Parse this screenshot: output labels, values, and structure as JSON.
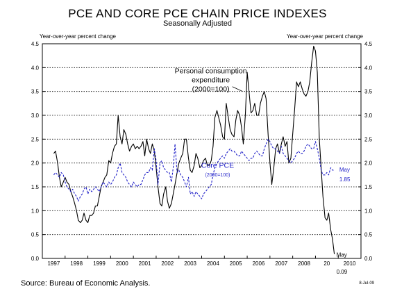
{
  "title": "PCE AND CORE PCE CHAIN PRICE INDEXES",
  "subtitle": "Seasonally Adjusted",
  "left_axis_label": "Year-over-year percent change",
  "right_axis_label": "Year-over-year percent change",
  "source": "Source: Bureau of Economic Analysis.",
  "date_note": "8-Jul-09",
  "colors": {
    "pce": "#000000",
    "core": "#1f1fc8",
    "grid": "#000000"
  },
  "chart_data": {
    "type": "line",
    "ylim": [
      0,
      4.5
    ],
    "xlim": [
      1996.5,
      2010.5
    ],
    "grid": "dotted horizontal",
    "y_ticks": [
      "0.0",
      "0.5",
      "1.0",
      "1.5",
      "2.0",
      "2.5",
      "3.0",
      "3.5",
      "4.0",
      "4.5"
    ],
    "x_tick_labels": [
      "1997",
      "1998",
      "1999",
      "2000",
      "2001",
      "2002",
      "2003",
      "2004",
      "2005",
      "2006",
      "2007",
      "2008",
      "20",
      "2010"
    ],
    "annotations": {
      "pce": [
        "Personal consumption",
        "expenditure",
        "(2000=100)"
      ],
      "core": [
        "Core PCE",
        "(2000=100)"
      ],
      "core_end": [
        "May",
        "1.85"
      ],
      "pce_end": [
        "May",
        "0.09"
      ]
    },
    "series": [
      {
        "name": "Personal consumption expenditure (2000=100)",
        "x": [
          1997.0,
          1997.08,
          1997.17,
          1997.25,
          1997.33,
          1997.42,
          1997.5,
          1997.58,
          1997.67,
          1997.75,
          1997.83,
          1997.92,
          1998.0,
          1998.08,
          1998.17,
          1998.25,
          1998.33,
          1998.42,
          1998.5,
          1998.58,
          1998.67,
          1998.75,
          1998.83,
          1998.92,
          1999.0,
          1999.08,
          1999.17,
          1999.25,
          1999.33,
          1999.42,
          1999.5,
          1999.58,
          1999.67,
          1999.75,
          1999.83,
          1999.92,
          2000.0,
          2000.08,
          2000.17,
          2000.25,
          2000.33,
          2000.42,
          2000.5,
          2000.58,
          2000.67,
          2000.75,
          2000.83,
          2000.92,
          2001.0,
          2001.08,
          2001.17,
          2001.25,
          2001.33,
          2001.42,
          2001.5,
          2001.58,
          2001.67,
          2001.75,
          2001.83,
          2001.92,
          2002.0,
          2002.08,
          2002.17,
          2002.25,
          2002.33,
          2002.42,
          2002.5,
          2002.58,
          2002.67,
          2002.75,
          2002.83,
          2002.92,
          2003.0,
          2003.08,
          2003.17,
          2003.25,
          2003.33,
          2003.42,
          2003.5,
          2003.58,
          2003.67,
          2003.75,
          2003.83,
          2003.92,
          2004.0,
          2004.08,
          2004.17,
          2004.25,
          2004.33,
          2004.42,
          2004.5,
          2004.58,
          2004.67,
          2004.75,
          2004.83,
          2004.92,
          2005.0,
          2005.08,
          2005.17,
          2005.25,
          2005.33,
          2005.42,
          2005.5,
          2005.58,
          2005.67,
          2005.75,
          2005.83,
          2005.92,
          2006.0,
          2006.08,
          2006.17,
          2006.25,
          2006.33,
          2006.42,
          2006.5,
          2006.58,
          2006.67,
          2006.75,
          2006.83,
          2006.92,
          2007.0,
          2007.08,
          2007.17,
          2007.25,
          2007.33,
          2007.42,
          2007.5,
          2007.58,
          2007.67,
          2007.75,
          2007.83,
          2007.92,
          2008.0,
          2008.08,
          2008.17,
          2008.25,
          2008.33,
          2008.42,
          2008.5,
          2008.58,
          2008.67,
          2008.75,
          2008.83,
          2008.92,
          2009.0,
          2009.08,
          2009.17,
          2009.25,
          2009.33
        ],
        "values": [
          2.2,
          2.25,
          2.0,
          1.7,
          1.5,
          1.6,
          1.7,
          1.6,
          1.55,
          1.4,
          1.3,
          1.15,
          1.0,
          0.8,
          0.75,
          0.8,
          0.95,
          0.8,
          0.75,
          0.9,
          0.9,
          0.95,
          1.1,
          1.1,
          1.3,
          1.5,
          1.6,
          1.7,
          1.75,
          2.05,
          2.0,
          2.2,
          2.35,
          2.4,
          3.0,
          2.55,
          2.4,
          2.7,
          2.6,
          2.4,
          2.25,
          2.35,
          2.4,
          2.3,
          2.35,
          2.3,
          2.35,
          2.45,
          2.15,
          2.5,
          2.3,
          2.2,
          2.4,
          2.25,
          1.9,
          1.5,
          1.15,
          1.1,
          1.35,
          1.5,
          1.2,
          1.05,
          1.15,
          1.35,
          1.55,
          1.8,
          2.0,
          2.1,
          2.2,
          2.5,
          2.5,
          2.1,
          1.85,
          1.8,
          1.95,
          2.2,
          2.1,
          1.9,
          1.95,
          2.05,
          2.1,
          1.95,
          1.95,
          2.05,
          2.35,
          2.95,
          3.1,
          2.95,
          2.8,
          2.55,
          2.5,
          3.25,
          2.95,
          2.7,
          2.6,
          2.55,
          2.9,
          3.1,
          3.0,
          2.75,
          2.4,
          3.0,
          3.9,
          3.5,
          3.05,
          3.1,
          3.25,
          3.0,
          3.0,
          3.25,
          3.4,
          3.5,
          3.35,
          2.6,
          2.0,
          1.55,
          1.9,
          2.3,
          2.4,
          2.2,
          2.4,
          2.55,
          2.35,
          2.45,
          2.0,
          2.1,
          2.6,
          3.1,
          3.7,
          3.6,
          3.7,
          3.55,
          3.45,
          3.4,
          3.5,
          3.7,
          4.1,
          4.45,
          4.35,
          3.9,
          2.5,
          1.9,
          1.3,
          0.85,
          0.8,
          0.95,
          0.6,
          0.4,
          0.09
        ]
      },
      {
        "name": "Core PCE (2000=100)",
        "x": [
          1997.0,
          1997.08,
          1997.17,
          1997.25,
          1997.33,
          1997.42,
          1997.5,
          1997.58,
          1997.67,
          1997.75,
          1997.83,
          1997.92,
          1998.0,
          1998.08,
          1998.17,
          1998.25,
          1998.33,
          1998.42,
          1998.5,
          1998.58,
          1998.67,
          1998.75,
          1998.83,
          1998.92,
          1999.0,
          1999.08,
          1999.17,
          1999.25,
          1999.33,
          1999.42,
          1999.5,
          1999.58,
          1999.67,
          1999.75,
          1999.83,
          1999.92,
          2000.0,
          2000.08,
          2000.17,
          2000.25,
          2000.33,
          2000.42,
          2000.5,
          2000.58,
          2000.67,
          2000.75,
          2000.83,
          2000.92,
          2001.0,
          2001.08,
          2001.17,
          2001.25,
          2001.33,
          2001.42,
          2001.5,
          2001.58,
          2001.67,
          2001.75,
          2001.83,
          2001.92,
          2002.0,
          2002.08,
          2002.17,
          2002.25,
          2002.33,
          2002.42,
          2002.5,
          2002.58,
          2002.67,
          2002.75,
          2002.83,
          2002.92,
          2003.0,
          2003.08,
          2003.17,
          2003.25,
          2003.33,
          2003.42,
          2003.5,
          2003.58,
          2003.67,
          2003.75,
          2003.83,
          2003.92,
          2004.0,
          2004.08,
          2004.17,
          2004.25,
          2004.33,
          2004.42,
          2004.5,
          2004.58,
          2004.67,
          2004.75,
          2004.83,
          2004.92,
          2005.0,
          2005.08,
          2005.17,
          2005.25,
          2005.33,
          2005.42,
          2005.5,
          2005.58,
          2005.67,
          2005.75,
          2005.83,
          2005.92,
          2006.0,
          2006.08,
          2006.17,
          2006.25,
          2006.33,
          2006.42,
          2006.5,
          2006.58,
          2006.67,
          2006.75,
          2006.83,
          2006.92,
          2007.0,
          2007.08,
          2007.17,
          2007.25,
          2007.33,
          2007.42,
          2007.5,
          2007.58,
          2007.67,
          2007.75,
          2007.83,
          2007.92,
          2008.0,
          2008.08,
          2008.17,
          2008.25,
          2008.33,
          2008.42,
          2008.5,
          2008.58,
          2008.67,
          2008.75,
          2008.83,
          2008.92,
          2009.0,
          2009.08,
          2009.17,
          2009.25,
          2009.33
        ],
        "values": [
          1.75,
          1.8,
          1.75,
          1.7,
          1.8,
          1.75,
          1.6,
          1.5,
          1.45,
          1.4,
          1.45,
          1.35,
          1.3,
          1.2,
          1.3,
          1.35,
          1.45,
          1.5,
          1.35,
          1.45,
          1.4,
          1.45,
          1.5,
          1.45,
          1.4,
          1.5,
          1.6,
          1.55,
          1.5,
          1.6,
          1.55,
          1.6,
          1.7,
          1.75,
          1.9,
          2.0,
          1.8,
          1.75,
          1.7,
          1.6,
          1.55,
          1.5,
          1.6,
          1.55,
          1.5,
          1.55,
          1.55,
          1.65,
          1.75,
          1.8,
          1.8,
          1.9,
          1.85,
          2.3,
          2.05,
          1.55,
          2.0,
          2.05,
          1.9,
          1.85,
          1.8,
          1.8,
          1.6,
          1.9,
          2.4,
          1.8,
          1.85,
          1.75,
          1.7,
          1.6,
          1.5,
          1.7,
          1.35,
          1.4,
          1.3,
          1.4,
          1.35,
          1.3,
          1.25,
          1.35,
          1.4,
          1.45,
          1.5,
          1.55,
          1.75,
          1.9,
          2.0,
          2.05,
          2.1,
          2.15,
          2.1,
          2.2,
          2.25,
          2.3,
          2.25,
          2.25,
          2.2,
          2.15,
          2.15,
          2.25,
          2.2,
          2.15,
          2.1,
          2.05,
          2.1,
          2.1,
          2.2,
          2.25,
          2.2,
          2.15,
          2.15,
          2.3,
          2.4,
          2.5,
          2.45,
          2.35,
          2.3,
          2.3,
          2.25,
          2.2,
          2.35,
          2.2,
          2.15,
          2.1,
          2.05,
          2.0,
          2.05,
          2.1,
          2.2,
          2.25,
          2.2,
          2.2,
          2.25,
          2.35,
          2.4,
          2.35,
          2.3,
          2.3,
          2.45,
          2.3,
          2.1,
          1.85,
          1.75,
          1.75,
          1.8,
          1.75,
          1.9,
          1.85,
          1.85
        ]
      }
    ]
  }
}
